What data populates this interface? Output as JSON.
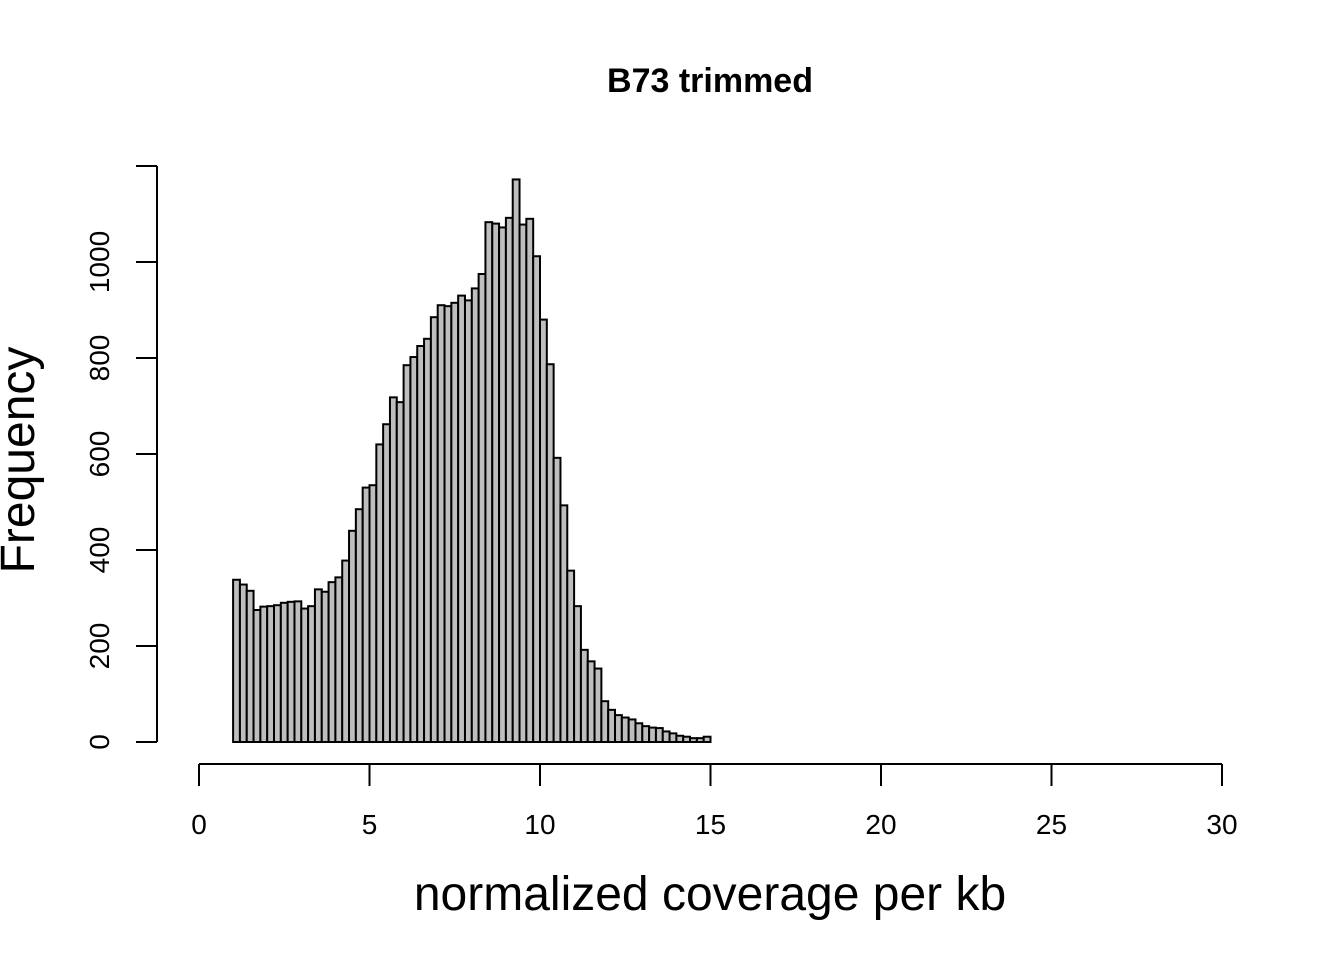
{
  "chart_data": {
    "type": "bar",
    "title": "B73 trimmed",
    "xlabel": "normalized coverage per kb",
    "ylabel": "Frequency",
    "xlim": [
      0,
      30
    ],
    "ylim": [
      0,
      1200
    ],
    "x_ticks": [
      "0",
      "5",
      "10",
      "15",
      "20",
      "25",
      "30"
    ],
    "y_ticks": [
      "0",
      "200",
      "400",
      "600",
      "800",
      "1000"
    ],
    "bin_width": 0.2,
    "bin_start": 1.0,
    "bar_color": "#bebebe",
    "values": [
      338,
      328,
      315,
      275,
      282,
      283,
      285,
      290,
      292,
      293,
      278,
      283,
      318,
      313,
      333,
      343,
      378,
      440,
      485,
      530,
      535,
      620,
      662,
      718,
      708,
      785,
      802,
      825,
      840,
      885,
      910,
      908,
      915,
      930,
      920,
      945,
      975,
      1083,
      1080,
      1072,
      1092,
      1172,
      1078,
      1090,
      1012,
      880,
      787,
      592,
      493,
      357,
      283,
      192,
      168,
      153,
      85,
      67,
      56,
      51,
      47,
      39,
      33,
      30,
      29,
      22,
      18,
      13,
      11,
      8,
      8,
      11
    ]
  }
}
